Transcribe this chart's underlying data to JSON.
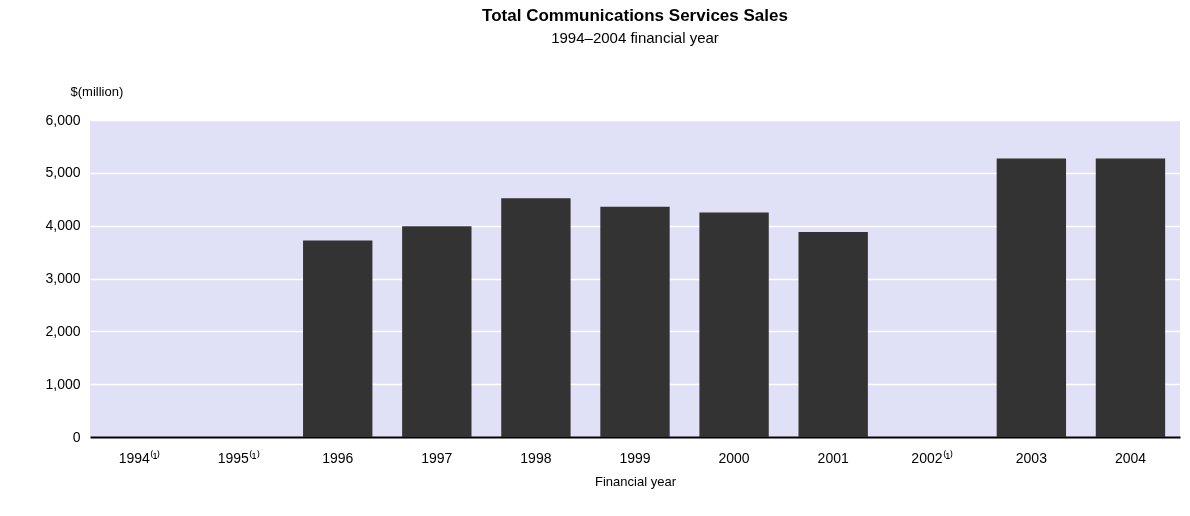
{
  "chart_data": {
    "type": "bar",
    "title": "Total Communications Services Sales",
    "subtitle": "1994–2004 financial year",
    "xlabel": "Financial year",
    "ylabel": "$(million)",
    "categories": [
      "1994⁽¹⁾",
      "1995⁽¹⁾",
      "1996",
      "1997",
      "1998",
      "1999",
      "2000",
      "2001",
      "2002⁽¹⁾",
      "2003",
      "2004"
    ],
    "values": [
      null,
      null,
      3720,
      3990,
      4520,
      4360,
      4250,
      3880,
      null,
      5270,
      5270
    ],
    "color": "#333333",
    "ylim": [
      0,
      6000
    ],
    "yticks": [
      0,
      {
        "value": 1000,
        "label": "1,000"
      },
      {
        "value": 2000,
        "label": "2,000"
      },
      {
        "value": 3000,
        "label": "3,000"
      },
      {
        "value": 4000,
        "label": "4,000"
      },
      {
        "value": 5000,
        "label": "5,000"
      },
      {
        "value": 6000,
        "label": "6,000"
      }
    ],
    "grid": "y"
  }
}
